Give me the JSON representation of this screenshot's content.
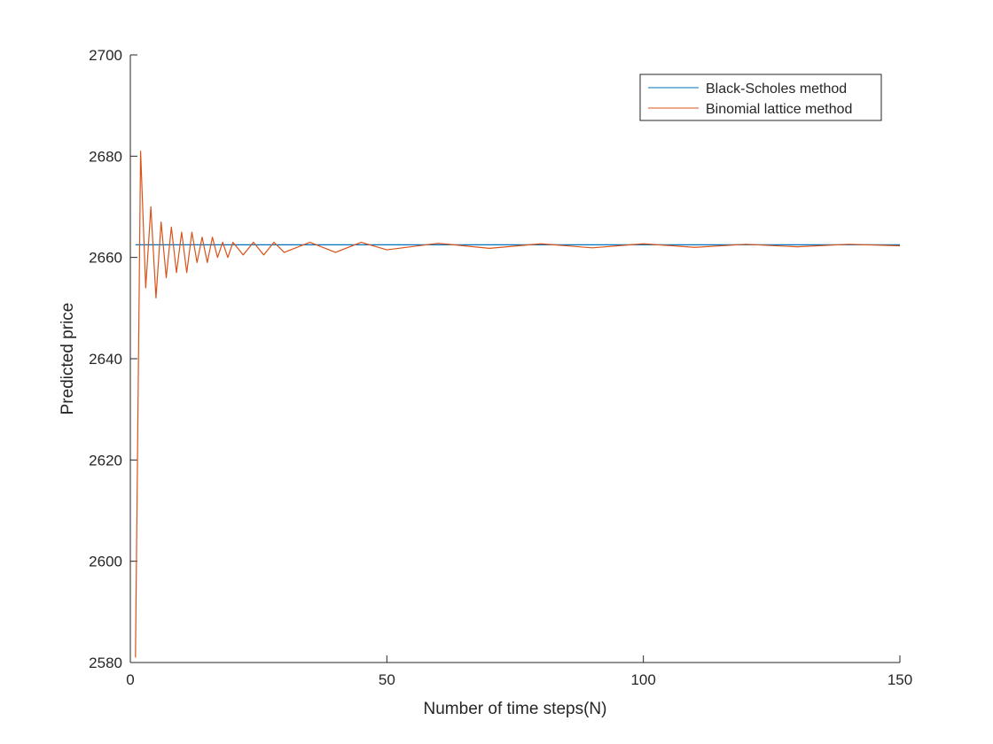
{
  "chart_data": {
    "type": "line",
    "title": "",
    "xlabel": "Number of time steps(N)",
    "ylabel": "Predicted price",
    "xlim": [
      0,
      150
    ],
    "ylim": [
      2580,
      2700
    ],
    "xticks": [
      0,
      50,
      100,
      150
    ],
    "xtick_labels": [
      "0",
      "50",
      "100",
      "150"
    ],
    "yticks": [
      2580,
      2600,
      2620,
      2640,
      2660,
      2680,
      2700
    ],
    "ytick_labels": [
      "2580",
      "2600",
      "2620",
      "2640",
      "2660",
      "2680",
      "2700"
    ],
    "grid": false,
    "legend_position": "top-right",
    "series": [
      {
        "name": "Black-Scholes method",
        "color": "#0072BD",
        "x": [
          1,
          150
        ],
        "y": [
          2662.5,
          2662.5
        ]
      },
      {
        "name": "Binomial lattice method",
        "color": "#D95319",
        "x": [
          1,
          2,
          3,
          4,
          5,
          6,
          7,
          8,
          9,
          10,
          11,
          12,
          13,
          14,
          15,
          16,
          17,
          18,
          19,
          20,
          22,
          24,
          26,
          28,
          30,
          35,
          40,
          45,
          50,
          60,
          70,
          80,
          90,
          100,
          110,
          120,
          130,
          140,
          150
        ],
        "y": [
          2581,
          2681,
          2654,
          2670,
          2652,
          2667,
          2656,
          2666,
          2657,
          2665,
          2657,
          2665,
          2659,
          2664,
          2659,
          2664,
          2660,
          2663,
          2660,
          2663,
          2660.5,
          2663,
          2660.5,
          2663,
          2661,
          2663,
          2661,
          2663,
          2661.5,
          2662.8,
          2661.8,
          2662.7,
          2661.9,
          2662.7,
          2662,
          2662.6,
          2662.1,
          2662.6,
          2662.3
        ]
      }
    ]
  }
}
